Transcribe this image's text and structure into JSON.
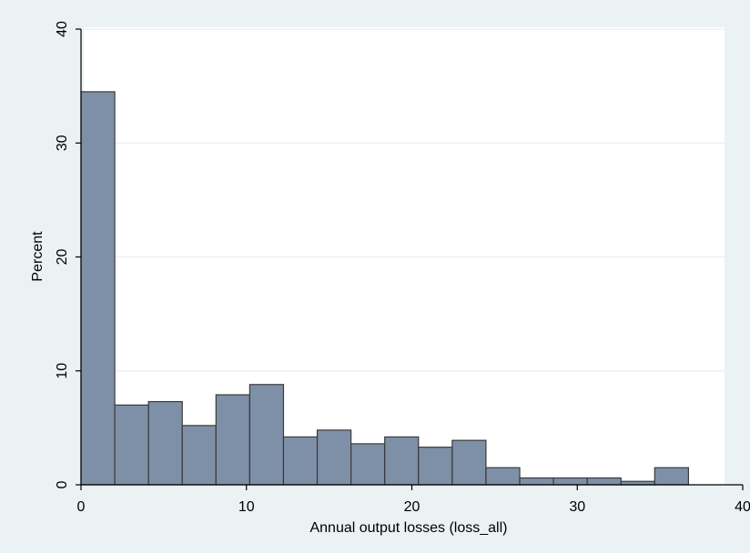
{
  "chart_data": {
    "type": "bar",
    "title": "",
    "xlabel": "Annual output losses (loss_all)",
    "ylabel": "Percent",
    "xlim": [
      0,
      40
    ],
    "ylim": [
      0,
      40
    ],
    "xticks": [
      "0",
      "10",
      "20",
      "30",
      "40"
    ],
    "yticks": [
      "0",
      "10",
      "20",
      "30",
      "40"
    ],
    "grid": true,
    "bin_width": 2.04,
    "bins": [
      {
        "x0": 0.0,
        "x1": 2.04,
        "value": 34.5
      },
      {
        "x0": 2.04,
        "x1": 4.08,
        "value": 7.0
      },
      {
        "x0": 4.08,
        "x1": 6.12,
        "value": 7.3
      },
      {
        "x0": 6.12,
        "x1": 8.16,
        "value": 5.2
      },
      {
        "x0": 8.16,
        "x1": 10.2,
        "value": 7.9
      },
      {
        "x0": 10.2,
        "x1": 12.24,
        "value": 8.8
      },
      {
        "x0": 12.24,
        "x1": 14.28,
        "value": 4.2
      },
      {
        "x0": 14.28,
        "x1": 16.32,
        "value": 4.8
      },
      {
        "x0": 16.32,
        "x1": 18.36,
        "value": 3.6
      },
      {
        "x0": 18.36,
        "x1": 20.4,
        "value": 4.2
      },
      {
        "x0": 20.4,
        "x1": 22.44,
        "value": 3.3
      },
      {
        "x0": 22.44,
        "x1": 24.48,
        "value": 3.9
      },
      {
        "x0": 24.48,
        "x1": 26.52,
        "value": 1.5
      },
      {
        "x0": 26.52,
        "x1": 28.56,
        "value": 0.6
      },
      {
        "x0": 28.56,
        "x1": 30.6,
        "value": 0.6
      },
      {
        "x0": 30.6,
        "x1": 32.64,
        "value": 0.6
      },
      {
        "x0": 32.64,
        "x1": 34.68,
        "value": 0.3
      },
      {
        "x0": 34.68,
        "x1": 36.72,
        "value": 1.5
      }
    ],
    "colors": {
      "outer_background": "#eaf2f3",
      "plot_background": "#ffffff",
      "bar_fill": "#7e90a7",
      "bar_stroke": "#3a3a3a",
      "grid": "#eaf2f3",
      "axis": "#000000"
    }
  }
}
